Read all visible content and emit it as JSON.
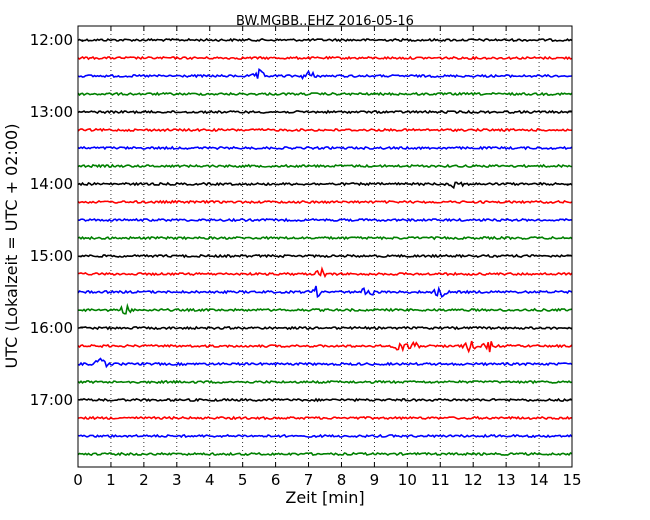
{
  "chart_data": {
    "type": "line",
    "title": "BW.MGBB..EHZ 2016-05-16",
    "xlabel": "Zeit  [min]",
    "ylabel": "UTC (Lokalzeit = UTC + 02:00)",
    "xlim": [
      0,
      15
    ],
    "x_ticks": [
      "0",
      "1",
      "2",
      "3",
      "4",
      "5",
      "6",
      "7",
      "8",
      "9",
      "10",
      "11",
      "12",
      "13",
      "14",
      "15"
    ],
    "y_ticks": [
      "12:00",
      "13:00",
      "14:00",
      "15:00",
      "16:00",
      "17:00"
    ],
    "grid": true,
    "trace_colors": [
      "#000000",
      "#ff0000",
      "#0000ff",
      "#008000"
    ],
    "trace_start_times": [
      "12:00",
      "12:15",
      "12:30",
      "12:45",
      "13:00",
      "13:15",
      "13:30",
      "13:45",
      "14:00",
      "14:15",
      "14:30",
      "14:45",
      "15:00",
      "15:15",
      "15:30",
      "15:45",
      "16:00",
      "16:15",
      "16:30",
      "16:45",
      "17:00",
      "17:15",
      "17:30",
      "17:45"
    ],
    "trace_minutes_per_line": 15,
    "events": [
      {
        "trace": "12:30",
        "minute": 5.5
      },
      {
        "trace": "12:30",
        "minute": 7.0
      },
      {
        "trace": "14:00",
        "minute": 11.5
      },
      {
        "trace": "15:15",
        "minute": 7.4
      },
      {
        "trace": "15:30",
        "minute": 7.2
      },
      {
        "trace": "15:30",
        "minute": 8.8
      },
      {
        "trace": "15:30",
        "minute": 11.0
      },
      {
        "trace": "15:45",
        "minute": 1.4
      },
      {
        "trace": "16:15",
        "minute": 9.8
      },
      {
        "trace": "16:15",
        "minute": 10.2
      },
      {
        "trace": "16:15",
        "minute": 11.9
      },
      {
        "trace": "16:15",
        "minute": 12.5
      },
      {
        "trace": "16:30",
        "minute": 0.7
      }
    ]
  }
}
